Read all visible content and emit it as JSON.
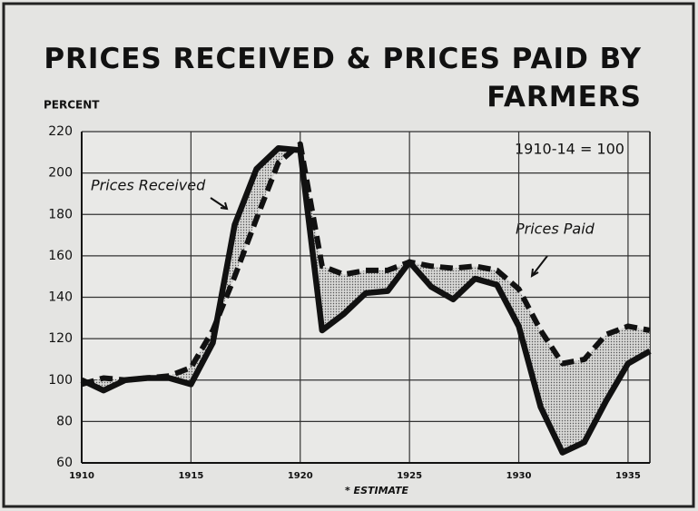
{
  "chart_data": {
    "type": "line",
    "title": "PRICES RECEIVED & PRICES PAID BY FARMERS",
    "ylabel": "PERCENT",
    "annotation": "1910-14 = 100",
    "footnote": "* ESTIMATE",
    "x": [
      1910,
      1911,
      1912,
      1913,
      1914,
      1915,
      1916,
      1917,
      1918,
      1919,
      1920,
      1921,
      1922,
      1923,
      1924,
      1925,
      1926,
      1927,
      1928,
      1929,
      1930,
      1931,
      1932,
      1933,
      1934,
      1935,
      1936
    ],
    "xlim": [
      1910,
      1936
    ],
    "xticks": [
      1910,
      1915,
      1920,
      1925,
      1930,
      1935
    ],
    "ylim": [
      60,
      220
    ],
    "yticks": [
      60,
      80,
      100,
      120,
      140,
      160,
      180,
      200,
      220
    ],
    "grid": true,
    "series": [
      {
        "name": "Prices Received",
        "color": "#111111",
        "style": "solid",
        "values": [
          100,
          95,
          100,
          101,
          101,
          98,
          118,
          175,
          202,
          212,
          211,
          124,
          132,
          142,
          143,
          157,
          145,
          139,
          149,
          146,
          126,
          87,
          65,
          70,
          90,
          108,
          114
        ]
      },
      {
        "name": "Prices Paid",
        "color": "#111111",
        "style": "dashed",
        "values": [
          98,
          101,
          100,
          101,
          102,
          106,
          124,
          150,
          178,
          205,
          214,
          155,
          151,
          153,
          153,
          157,
          155,
          154,
          155,
          153,
          144,
          124,
          108,
          110,
          122,
          126,
          124
        ]
      }
    ]
  }
}
